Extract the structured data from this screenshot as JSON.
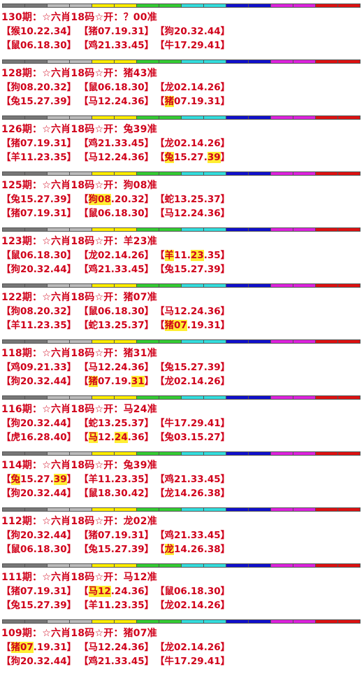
{
  "stripe_colors": [
    "#777777",
    "#bbbbbb",
    "#ffee00",
    "#33cc33",
    "#33dddd",
    "#1010cc",
    "#dd22dd",
    "#dd1111"
  ],
  "highlight_color": "#ffee33",
  "text_color": "#d0021b",
  "blocks": [
    {
      "header": "130期：☆六肖18码☆开：？00准",
      "combos": [
        [
          {
            "t": "【猴10.22.34】"
          }
        ],
        [
          {
            "t": "【猪07.19.31】"
          }
        ],
        [
          {
            "t": "【狗20.32.44】"
          }
        ],
        [
          {
            "t": "【鼠06.18.30】"
          }
        ],
        [
          {
            "t": "【鸡21.33.45】"
          }
        ],
        [
          {
            "t": "【牛17.29.41】"
          }
        ]
      ]
    },
    {
      "header": "128期：☆六肖18码☆开：猪43准",
      "combos": [
        [
          {
            "t": "【狗08.20.32】"
          }
        ],
        [
          {
            "t": "【鼠06.18.30】"
          }
        ],
        [
          {
            "t": "【龙02.14.26】"
          }
        ],
        [
          {
            "t": "【兔15.27.39】"
          }
        ],
        [
          {
            "t": "【马12.24.36】"
          }
        ],
        [
          {
            "t": "【"
          },
          {
            "t": "猪",
            "h": true
          },
          {
            "t": "07.19.31】"
          }
        ]
      ]
    },
    {
      "header": "126期：☆六肖18码☆开：兔39准",
      "combos": [
        [
          {
            "t": "【猪07.19.31】"
          }
        ],
        [
          {
            "t": "【鸡21.33.45】"
          }
        ],
        [
          {
            "t": "【龙02.14.26】"
          }
        ],
        [
          {
            "t": "【羊11.23.35】"
          }
        ],
        [
          {
            "t": "【马12.24.36】"
          }
        ],
        [
          {
            "t": "【"
          },
          {
            "t": "兔",
            "h": true
          },
          {
            "t": "15.27."
          },
          {
            "t": "39",
            "h": true
          },
          {
            "t": "】"
          }
        ]
      ]
    },
    {
      "header": "125期：☆六肖18码☆开：狗08准",
      "combos": [
        [
          {
            "t": "【兔15.27.39】"
          }
        ],
        [
          {
            "t": "【"
          },
          {
            "t": "狗08",
            "h": true
          },
          {
            "t": ".20.32】"
          }
        ],
        [
          {
            "t": "【蛇13.25.37】"
          }
        ],
        [
          {
            "t": "【猪07.19.31】"
          }
        ],
        [
          {
            "t": "【鼠06.18.30】"
          }
        ],
        [
          {
            "t": "【马12.24.36】"
          }
        ]
      ]
    },
    {
      "header": "123期：☆六肖18码☆开：羊23准",
      "combos": [
        [
          {
            "t": "【鼠06.18.30】"
          }
        ],
        [
          {
            "t": "【龙02.14.26】"
          }
        ],
        [
          {
            "t": "【"
          },
          {
            "t": "羊",
            "h": true
          },
          {
            "t": "11."
          },
          {
            "t": "23",
            "h": true
          },
          {
            "t": ".35】"
          }
        ],
        [
          {
            "t": "【狗20.32.44】"
          }
        ],
        [
          {
            "t": "【鸡21.33.45】"
          }
        ],
        [
          {
            "t": "【兔15.27.39】"
          }
        ]
      ]
    },
    {
      "header": "122期：☆六肖18码☆开：猪07准",
      "combos": [
        [
          {
            "t": "【狗08.20.32】"
          }
        ],
        [
          {
            "t": "【鼠06.18.30】"
          }
        ],
        [
          {
            "t": "【马12.24.36】"
          }
        ],
        [
          {
            "t": "【羊11.23.35】"
          }
        ],
        [
          {
            "t": "【蛇13.25.37】"
          }
        ],
        [
          {
            "t": "【"
          },
          {
            "t": "猪07",
            "h": true
          },
          {
            "t": ".19.31】"
          }
        ]
      ]
    },
    {
      "header": "118期：☆六肖18码☆开：猪31准",
      "combos": [
        [
          {
            "t": "【鸡09.21.33】"
          }
        ],
        [
          {
            "t": "【马12.24.36】"
          }
        ],
        [
          {
            "t": "【兔15.27.39】"
          }
        ],
        [
          {
            "t": "【狗20.32.44】"
          }
        ],
        [
          {
            "t": "【"
          },
          {
            "t": "猪",
            "h": true
          },
          {
            "t": "07.19."
          },
          {
            "t": "31",
            "h": true
          },
          {
            "t": "】"
          }
        ],
        [
          {
            "t": "【龙02.14.26】"
          }
        ]
      ]
    },
    {
      "header": "116期：☆六肖18码☆开：马24准",
      "combos": [
        [
          {
            "t": "【狗20.32.44】"
          }
        ],
        [
          {
            "t": "【蛇13.25.37】"
          }
        ],
        [
          {
            "t": "【牛17.29.41】"
          }
        ],
        [
          {
            "t": "【虎16.28.40】"
          }
        ],
        [
          {
            "t": "【"
          },
          {
            "t": "马",
            "h": true
          },
          {
            "t": "12."
          },
          {
            "t": "24",
            "h": true
          },
          {
            "t": ".36】"
          }
        ],
        [
          {
            "t": "【兔03.15.27】"
          }
        ]
      ]
    },
    {
      "header": "114期：☆六肖18码☆开：兔39准",
      "combos": [
        [
          {
            "t": "【"
          },
          {
            "t": "兔",
            "h": true
          },
          {
            "t": "15.27."
          },
          {
            "t": "39",
            "h": true
          },
          {
            "t": "】"
          }
        ],
        [
          {
            "t": "【羊11.23.35】"
          }
        ],
        [
          {
            "t": "【鸡21.33.45】"
          }
        ],
        [
          {
            "t": "【狗20.32.44】"
          }
        ],
        [
          {
            "t": "【鼠18.30.42】"
          }
        ],
        [
          {
            "t": "【龙14.26.38】"
          }
        ]
      ]
    },
    {
      "header": "112期：☆六肖18码☆开：龙02准",
      "combos": [
        [
          {
            "t": "【狗20.32.44】"
          }
        ],
        [
          {
            "t": "【猪07.19.31】"
          }
        ],
        [
          {
            "t": "【鸡21.33.45】"
          }
        ],
        [
          {
            "t": "【鼠06.18.30】"
          }
        ],
        [
          {
            "t": "【兔15.27.39】"
          }
        ],
        [
          {
            "t": "【"
          },
          {
            "t": "龙",
            "h": true
          },
          {
            "t": "14.26.38】"
          }
        ]
      ]
    },
    {
      "header": "111期：☆六肖18码☆开：马12准",
      "combos": [
        [
          {
            "t": "【猪07.19.31】"
          }
        ],
        [
          {
            "t": "【"
          },
          {
            "t": "马12",
            "h": true
          },
          {
            "t": ".24.36】"
          }
        ],
        [
          {
            "t": "【鼠06.18.30】"
          }
        ],
        [
          {
            "t": "【兔15.27.39】"
          }
        ],
        [
          {
            "t": "【羊11.23.35】"
          }
        ],
        [
          {
            "t": "【龙02.14.26】"
          }
        ]
      ]
    },
    {
      "header": "109期：☆六肖18码☆开：猪07准",
      "combos": [
        [
          {
            "t": "【"
          },
          {
            "t": "猪07",
            "h": true
          },
          {
            "t": ".19.31】"
          }
        ],
        [
          {
            "t": "【马12.24.36】"
          }
        ],
        [
          {
            "t": "【龙02.14.26】"
          }
        ],
        [
          {
            "t": "【狗20.32.44】"
          }
        ],
        [
          {
            "t": "【鸡21.33.45】"
          }
        ],
        [
          {
            "t": "【牛17.29.41】"
          }
        ]
      ]
    }
  ]
}
